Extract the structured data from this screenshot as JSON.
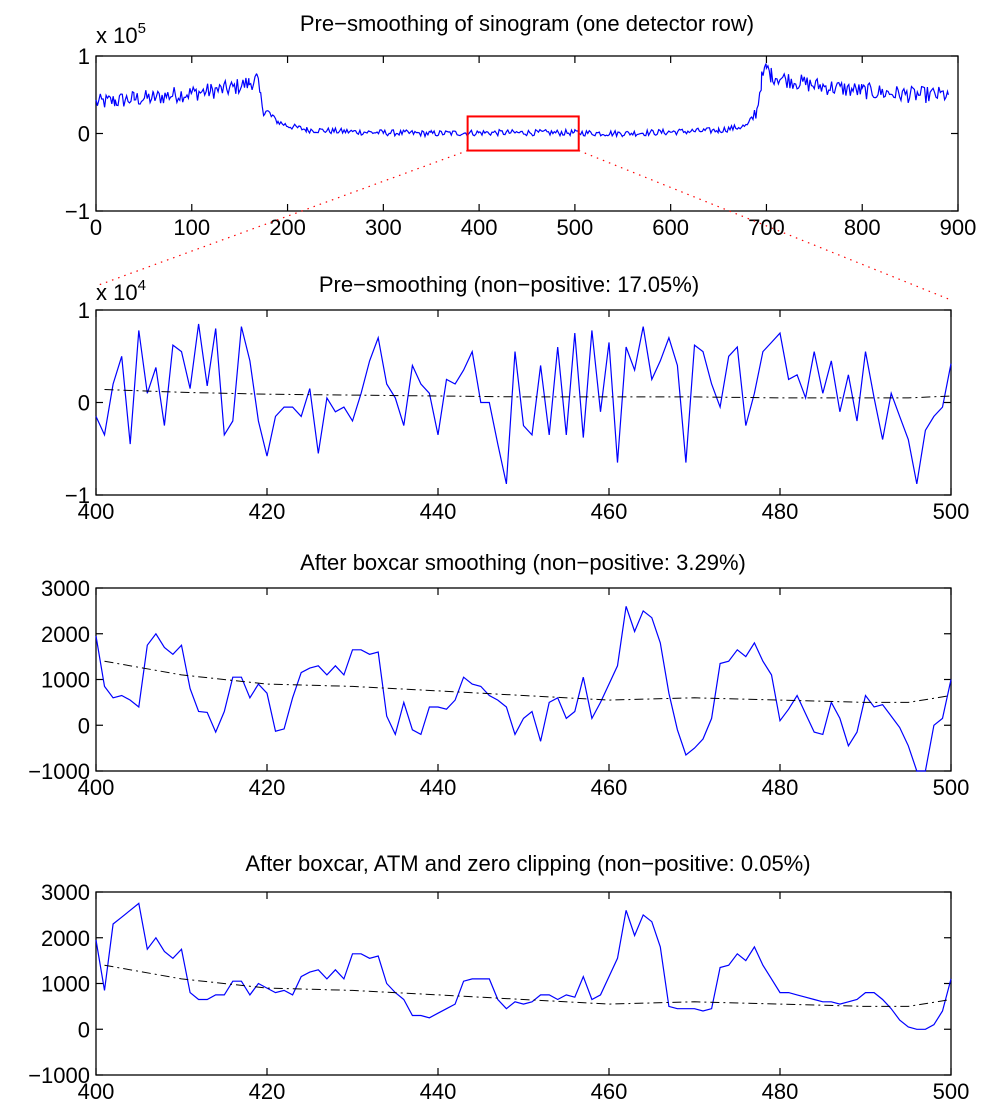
{
  "chart_data": [
    {
      "type": "line",
      "title": "Pre−smoothing of sinogram (one detector row)",
      "exponent_label": "x 10",
      "exponent_power": "5",
      "xlim": [
        0,
        900
      ],
      "ylim": [
        -1,
        1
      ],
      "xticks": [
        0,
        100,
        200,
        300,
        400,
        500,
        600,
        700,
        800,
        900
      ],
      "yticks": [
        -1,
        0,
        1
      ],
      "ytick_labels": [
        "−1",
        "0",
        "1"
      ],
      "zoom_region": {
        "x": [
          388,
          504
        ],
        "y": [
          -0.22,
          0.22
        ]
      },
      "series": [
        {
          "style": "solid-blue",
          "x": [
            0,
            20,
            40,
            60,
            80,
            100,
            120,
            140,
            160,
            168,
            172,
            176,
            180,
            190,
            200,
            220,
            250,
            300,
            350,
            400,
            450,
            500,
            550,
            600,
            650,
            680,
            690,
            695,
            700,
            705,
            720,
            750,
            800,
            850,
            890
          ],
          "y": [
            0.4,
            0.42,
            0.45,
            0.46,
            0.5,
            0.52,
            0.55,
            0.58,
            0.65,
            0.7,
            0.45,
            0.3,
            0.25,
            0.15,
            0.1,
            0.05,
            0.03,
            0.01,
            0.0,
            0.01,
            0.01,
            0.01,
            0.0,
            0.02,
            0.04,
            0.1,
            0.3,
            0.7,
            0.85,
            0.75,
            0.7,
            0.62,
            0.55,
            0.5,
            0.5
          ],
          "noise": 0.09
        }
      ]
    },
    {
      "type": "line",
      "title": "Pre−smoothing (non−positive: 17.05%)",
      "exponent_label": "x 10",
      "exponent_power": "4",
      "xlim": [
        400,
        500
      ],
      "ylim": [
        -1,
        1
      ],
      "xticks": [
        400,
        420,
        440,
        460,
        480,
        500
      ],
      "yticks": [
        -1,
        0,
        1
      ],
      "ytick_labels": [
        "−1",
        "0",
        "1"
      ],
      "series": [
        {
          "style": "solid-blue",
          "x": [
            400,
            401,
            402,
            403,
            404,
            405,
            406,
            407,
            408,
            409,
            410,
            411,
            412,
            413,
            414,
            415,
            416,
            417,
            418,
            419,
            420,
            421,
            422,
            423,
            424,
            425,
            426,
            427,
            428,
            429,
            430,
            431,
            432,
            433,
            434,
            435,
            436,
            437,
            438,
            439,
            440,
            441,
            442,
            443,
            444,
            445,
            446,
            447,
            448,
            449,
            450,
            451,
            452,
            453,
            454,
            455,
            456,
            457,
            458,
            459,
            460,
            461,
            462,
            463,
            464,
            465,
            466,
            467,
            468,
            469,
            470,
            471,
            472,
            473,
            474,
            475,
            476,
            477,
            478,
            479,
            480,
            481,
            482,
            483,
            484,
            485,
            486,
            487,
            488,
            489,
            490,
            491,
            492,
            493,
            494,
            495,
            496,
            497,
            498,
            499,
            500
          ],
          "y": [
            -0.15,
            -0.35,
            0.2,
            0.5,
            -0.45,
            0.78,
            0.1,
            0.38,
            -0.25,
            0.62,
            0.55,
            0.15,
            0.85,
            0.18,
            0.8,
            -0.35,
            -0.2,
            0.82,
            0.45,
            -0.2,
            -0.58,
            -0.15,
            -0.05,
            -0.05,
            -0.15,
            0.15,
            -0.55,
            0.05,
            -0.1,
            -0.05,
            -0.2,
            0.1,
            0.45,
            0.7,
            0.2,
            0.05,
            -0.25,
            0.4,
            0.2,
            0.1,
            -0.35,
            0.25,
            0.2,
            0.35,
            0.55,
            0.0,
            0.0,
            -0.45,
            -0.88,
            0.55,
            -0.25,
            -0.35,
            0.4,
            -0.35,
            0.6,
            -0.35,
            0.75,
            -0.38,
            0.78,
            -0.1,
            0.65,
            -0.65,
            0.6,
            0.35,
            0.82,
            0.25,
            0.45,
            0.7,
            0.4,
            -0.65,
            0.62,
            0.55,
            0.2,
            -0.05,
            0.5,
            0.6,
            -0.25,
            0.1,
            0.55,
            0.65,
            0.75,
            0.25,
            0.3,
            0.05,
            0.55,
            0.1,
            0.45,
            -0.1,
            0.3,
            -0.2,
            0.55,
            0.05,
            -0.4,
            0.1,
            -0.15,
            -0.4,
            -0.88,
            -0.3,
            -0.15,
            -0.05,
            0.42
          ]
        },
        {
          "style": "dashdot-black",
          "x": [
            401,
            410,
            420,
            430,
            440,
            450,
            460,
            470,
            480,
            490,
            495,
            500
          ],
          "y": [
            0.14,
            0.11,
            0.09,
            0.08,
            0.07,
            0.06,
            0.06,
            0.06,
            0.05,
            0.05,
            0.05,
            0.07
          ]
        }
      ]
    },
    {
      "type": "line",
      "title": "After boxcar smoothing (non−positive: 3.29%)",
      "xlim": [
        400,
        500
      ],
      "ylim": [
        -1000,
        3000
      ],
      "xticks": [
        400,
        420,
        440,
        460,
        480,
        500
      ],
      "yticks": [
        -1000,
        0,
        1000,
        2000,
        3000
      ],
      "ytick_labels": [
        "−1000",
        "0",
        "1000",
        "2000",
        "3000"
      ],
      "series": [
        {
          "style": "solid-blue",
          "x": [
            400,
            401,
            402,
            403,
            404,
            405,
            406,
            407,
            408,
            409,
            410,
            411,
            412,
            413,
            414,
            415,
            416,
            417,
            418,
            419,
            420,
            421,
            422,
            423,
            424,
            425,
            426,
            427,
            428,
            429,
            430,
            431,
            432,
            433,
            434,
            435,
            436,
            437,
            438,
            439,
            440,
            441,
            442,
            443,
            444,
            445,
            446,
            447,
            448,
            449,
            450,
            451,
            452,
            453,
            454,
            455,
            456,
            457,
            458,
            459,
            460,
            461,
            462,
            463,
            464,
            465,
            466,
            467,
            468,
            469,
            470,
            471,
            472,
            473,
            474,
            475,
            476,
            477,
            478,
            479,
            480,
            481,
            482,
            483,
            484,
            485,
            486,
            487,
            488,
            489,
            490,
            491,
            492,
            493,
            494,
            495,
            496,
            497,
            498,
            499,
            500
          ],
          "y": [
            1950,
            850,
            600,
            650,
            550,
            400,
            1750,
            2000,
            1700,
            1550,
            1750,
            800,
            300,
            280,
            -150,
            300,
            1050,
            1050,
            600,
            900,
            700,
            -130,
            -80,
            600,
            1150,
            1250,
            1300,
            1100,
            1300,
            1100,
            1650,
            1650,
            1550,
            1600,
            200,
            -200,
            500,
            -100,
            -200,
            400,
            400,
            350,
            550,
            1050,
            900,
            850,
            650,
            550,
            400,
            -200,
            150,
            300,
            -350,
            500,
            600,
            150,
            300,
            1050,
            150,
            500,
            900,
            1300,
            2600,
            2050,
            2500,
            2350,
            1800,
            700,
            -100,
            -650,
            -500,
            -300,
            150,
            1350,
            1400,
            1650,
            1500,
            1800,
            1400,
            1100,
            100,
            350,
            650,
            250,
            -150,
            -200,
            500,
            150,
            -450,
            -150,
            650,
            400,
            450,
            200,
            -50,
            -450,
            -1050,
            -1050,
            0,
            150,
            1000
          ]
        },
        {
          "style": "dashdot-black",
          "x": [
            401,
            410,
            420,
            430,
            440,
            450,
            460,
            470,
            480,
            490,
            495,
            500
          ],
          "y": [
            1400,
            1100,
            900,
            850,
            750,
            650,
            550,
            600,
            550,
            500,
            500,
            650
          ]
        }
      ]
    },
    {
      "type": "line",
      "title": "After boxcar, ATM and zero clipping (non−positive: 0.05%)",
      "xlim": [
        400,
        500
      ],
      "ylim": [
        -1000,
        3000
      ],
      "xticks": [
        400,
        420,
        440,
        460,
        480,
        500
      ],
      "yticks": [
        -1000,
        0,
        1000,
        2000,
        3000
      ],
      "ytick_labels": [
        "−1000",
        "0",
        "1000",
        "2000",
        "3000"
      ],
      "series": [
        {
          "style": "solid-blue",
          "x": [
            400,
            401,
            402,
            403,
            404,
            405,
            406,
            407,
            408,
            409,
            410,
            411,
            412,
            413,
            414,
            415,
            416,
            417,
            418,
            419,
            420,
            421,
            422,
            423,
            424,
            425,
            426,
            427,
            428,
            429,
            430,
            431,
            432,
            433,
            434,
            435,
            436,
            437,
            438,
            439,
            440,
            441,
            442,
            443,
            444,
            445,
            446,
            447,
            448,
            449,
            450,
            451,
            452,
            453,
            454,
            455,
            456,
            457,
            458,
            459,
            460,
            461,
            462,
            463,
            464,
            465,
            466,
            467,
            468,
            469,
            470,
            471,
            472,
            473,
            474,
            475,
            476,
            477,
            478,
            479,
            480,
            481,
            482,
            483,
            484,
            485,
            486,
            487,
            488,
            489,
            490,
            491,
            492,
            493,
            494,
            495,
            496,
            497,
            498,
            499,
            500
          ],
          "y": [
            1950,
            850,
            2300,
            2450,
            2600,
            2750,
            1750,
            2000,
            1700,
            1550,
            1750,
            800,
            650,
            650,
            750,
            750,
            1050,
            1050,
            750,
            1000,
            900,
            800,
            850,
            750,
            1150,
            1250,
            1300,
            1100,
            1300,
            1100,
            1650,
            1650,
            1550,
            1600,
            1000,
            800,
            650,
            300,
            300,
            250,
            350,
            450,
            550,
            1050,
            1100,
            1100,
            1100,
            650,
            450,
            600,
            550,
            600,
            750,
            750,
            650,
            750,
            700,
            1150,
            650,
            750,
            1150,
            1550,
            2600,
            2050,
            2500,
            2350,
            1800,
            500,
            450,
            450,
            450,
            400,
            450,
            1350,
            1400,
            1650,
            1500,
            1800,
            1400,
            1100,
            800,
            800,
            750,
            700,
            650,
            600,
            600,
            550,
            600,
            650,
            800,
            800,
            650,
            450,
            200,
            50,
            0,
            0,
            100,
            400,
            1100
          ]
        },
        {
          "style": "dashdot-black",
          "x": [
            401,
            410,
            420,
            430,
            440,
            450,
            460,
            470,
            480,
            490,
            495,
            500
          ],
          "y": [
            1400,
            1100,
            900,
            850,
            750,
            650,
            550,
            600,
            550,
            500,
            500,
            650
          ]
        }
      ]
    }
  ]
}
